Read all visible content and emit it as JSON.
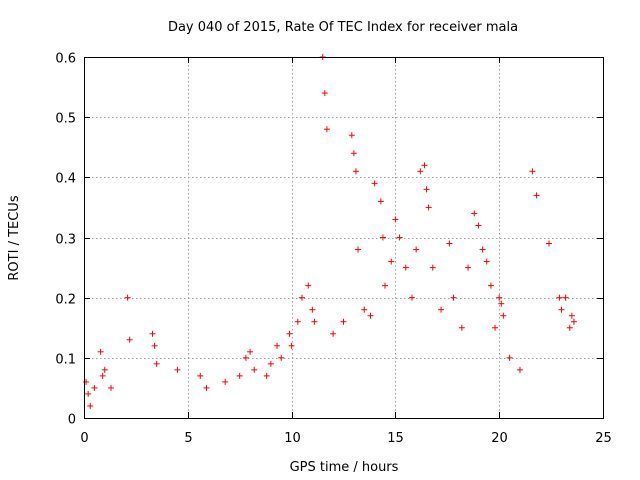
{
  "chart_data": {
    "type": "scatter",
    "title": "Day 040 of 2015, Rate Of TEC Index for receiver mala",
    "xlabel": "GPS time / hours",
    "ylabel": "ROTI / TECUs",
    "xlim": [
      0,
      25
    ],
    "ylim": [
      0,
      0.6
    ],
    "xticks": [
      0,
      5,
      10,
      15,
      20,
      25
    ],
    "yticks": [
      0,
      0.1,
      0.2,
      0.3,
      0.4,
      0.5,
      0.6
    ],
    "xtick_labels": [
      "0",
      "5",
      "10",
      "15",
      "20",
      "25"
    ],
    "ytick_labels": [
      "0",
      "0.1",
      "0.2",
      "0.3",
      "0.4",
      "0.5",
      "0.6"
    ],
    "grid": true,
    "marker": "+",
    "color": "#ff0000",
    "series": [
      {
        "name": "ROTI",
        "x": [
          0.1,
          0.2,
          0.3,
          0.5,
          0.8,
          0.9,
          1.0,
          1.3,
          2.1,
          2.2,
          3.3,
          3.4,
          3.5,
          4.5,
          5.6,
          5.9,
          6.8,
          7.5,
          7.8,
          8.0,
          8.2,
          8.8,
          9.0,
          9.3,
          9.5,
          9.9,
          10.0,
          10.3,
          10.5,
          10.8,
          11.0,
          11.1,
          11.5,
          11.6,
          11.7,
          12.0,
          12.5,
          12.9,
          13.0,
          13.1,
          13.2,
          13.5,
          13.8,
          14.0,
          14.3,
          14.4,
          14.5,
          14.8,
          15.0,
          15.2,
          15.5,
          15.8,
          16.0,
          16.2,
          16.4,
          16.5,
          16.6,
          16.8,
          17.2,
          17.6,
          17.8,
          18.2,
          18.5,
          18.8,
          19.0,
          19.2,
          19.4,
          19.6,
          19.8,
          20.0,
          20.1,
          20.2,
          20.5,
          21.0,
          21.6,
          21.8,
          22.4,
          22.9,
          23.0,
          23.2,
          23.4,
          23.5,
          23.6
        ],
        "y": [
          0.06,
          0.04,
          0.02,
          0.05,
          0.11,
          0.07,
          0.08,
          0.05,
          0.2,
          0.13,
          0.14,
          0.12,
          0.09,
          0.08,
          0.07,
          0.05,
          0.06,
          0.07,
          0.1,
          0.11,
          0.08,
          0.07,
          0.09,
          0.12,
          0.1,
          0.14,
          0.12,
          0.16,
          0.2,
          0.22,
          0.18,
          0.16,
          0.6,
          0.54,
          0.48,
          0.14,
          0.16,
          0.47,
          0.44,
          0.41,
          0.28,
          0.18,
          0.17,
          0.39,
          0.36,
          0.3,
          0.22,
          0.26,
          0.33,
          0.3,
          0.25,
          0.2,
          0.28,
          0.41,
          0.42,
          0.38,
          0.35,
          0.25,
          0.18,
          0.29,
          0.2,
          0.15,
          0.25,
          0.34,
          0.32,
          0.28,
          0.26,
          0.22,
          0.15,
          0.2,
          0.19,
          0.17,
          0.1,
          0.08,
          0.41,
          0.37,
          0.29,
          0.2,
          0.18,
          0.2,
          0.15,
          0.17,
          0.16
        ]
      }
    ]
  }
}
